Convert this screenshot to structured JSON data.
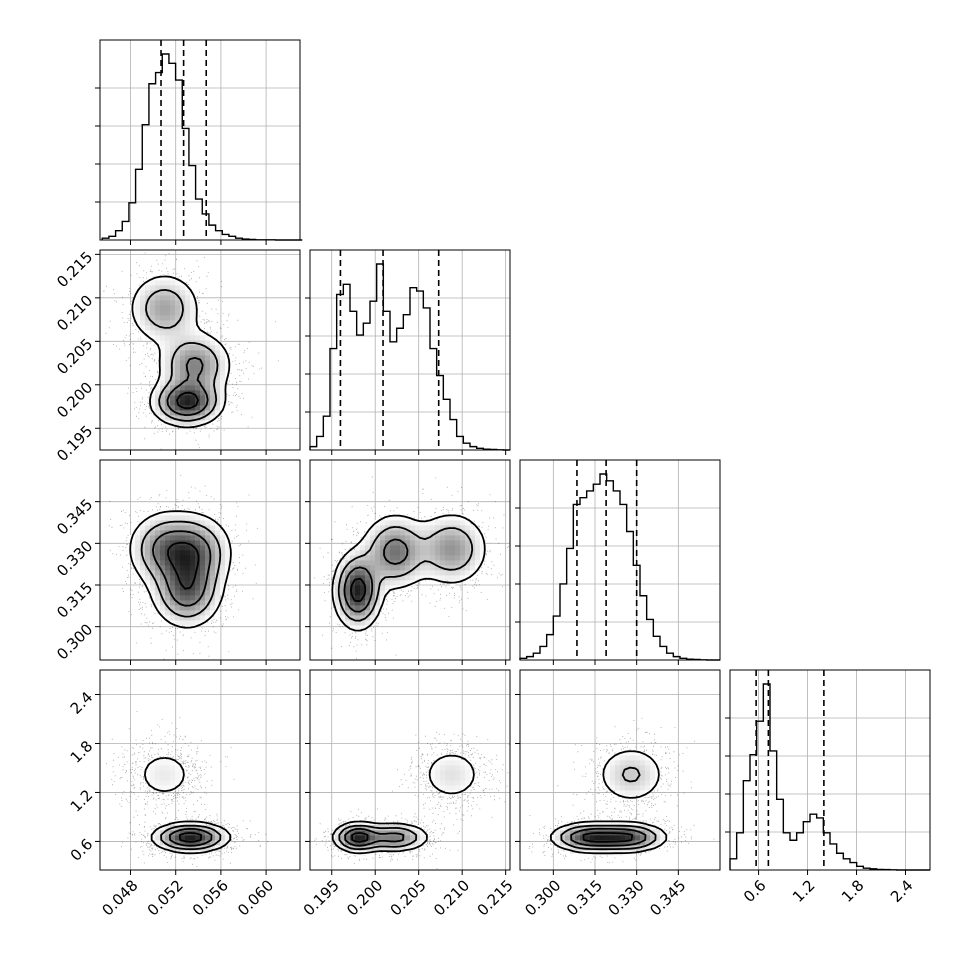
{
  "chart_data": {
    "type": "corner",
    "parameters": 4,
    "grid": true,
    "quantiles": [
      0.16,
      0.5,
      0.84
    ],
    "axes": {
      "p0": {
        "range": [
          0.0453,
          0.063
        ],
        "ticks": [
          0.048,
          0.052,
          0.056,
          0.06
        ],
        "tick_labels": [
          "0.048",
          "0.052",
          "0.056",
          "0.060"
        ]
      },
      "p1": {
        "range": [
          0.1925,
          0.2155
        ],
        "ticks": [
          0.195,
          0.2,
          0.205,
          0.21,
          0.215
        ],
        "tick_labels": [
          "0.195",
          "0.200",
          "0.205",
          "0.210",
          "0.215"
        ]
      },
      "p2": {
        "range": [
          0.288,
          0.36
        ],
        "ticks": [
          0.3,
          0.315,
          0.33,
          0.345
        ],
        "tick_labels": [
          "0.300",
          "0.315",
          "0.330",
          "0.345"
        ]
      },
      "p3": {
        "range": [
          0.25,
          2.7
        ],
        "ticks": [
          0.6,
          1.2,
          1.8,
          2.4
        ],
        "tick_labels": [
          "0.6",
          "1.2",
          "1.8",
          "2.4"
        ]
      }
    },
    "modes": [
      {
        "p0": 0.051,
        "p1": 0.2088,
        "p2": 0.328,
        "p3": 1.42,
        "weight": 0.3
      },
      {
        "p0": 0.0537,
        "p1": 0.2023,
        "p2": 0.327,
        "p3": 0.65,
        "weight": 0.34
      },
      {
        "p0": 0.053,
        "p1": 0.198,
        "p2": 0.313,
        "p3": 0.65,
        "weight": 0.36
      }
    ],
    "histograms": {
      "p0": {
        "bins": [
          0.0455,
          0.0632
        ],
        "counts": [
          1,
          2,
          5,
          10,
          20,
          38,
          62,
          84,
          90,
          100,
          95,
          86,
          60,
          40,
          22,
          14,
          8,
          5,
          3,
          2,
          1,
          0.5,
          0.3,
          0.1,
          0.1,
          0.1,
          0,
          0,
          0,
          0
        ]
      },
      "p1": {
        "bins": [
          0.1925,
          0.2155
        ],
        "counts": [
          2,
          8,
          20,
          60,
          92,
          98,
          82,
          68,
          75,
          88,
          110,
          82,
          64,
          72,
          80,
          96,
          94,
          84,
          60,
          44,
          30,
          18,
          8,
          4,
          2,
          1,
          0.5,
          0.3,
          0.1,
          0
        ]
      },
      "p2": {
        "bins": [
          0.288,
          0.36
        ],
        "counts": [
          1,
          2,
          4,
          8,
          15,
          26,
          45,
          66,
          92,
          96,
          100,
          104,
          110,
          106,
          100,
          92,
          76,
          56,
          38,
          24,
          14,
          8,
          4,
          2,
          1,
          0.5,
          0.3,
          0.1,
          0,
          0
        ]
      },
      "p3": {
        "bins": [
          0.25,
          2.7
        ],
        "counts": [
          6,
          20,
          48,
          62,
          80,
          100,
          64,
          38,
          20,
          16,
          20,
          26,
          30,
          28,
          20,
          14,
          9,
          6,
          4,
          2,
          1,
          0.6,
          0.3,
          0.2,
          0.1,
          0,
          0,
          0,
          0,
          0
        ]
      }
    },
    "quantile_lines": {
      "p0": [
        0.0507,
        0.0527,
        0.0547
      ],
      "p1": [
        0.196,
        0.2009,
        0.2073
      ],
      "p2": [
        0.3085,
        0.319,
        0.33
      ],
      "p3": [
        0.57,
        0.72,
        1.4
      ]
    }
  }
}
